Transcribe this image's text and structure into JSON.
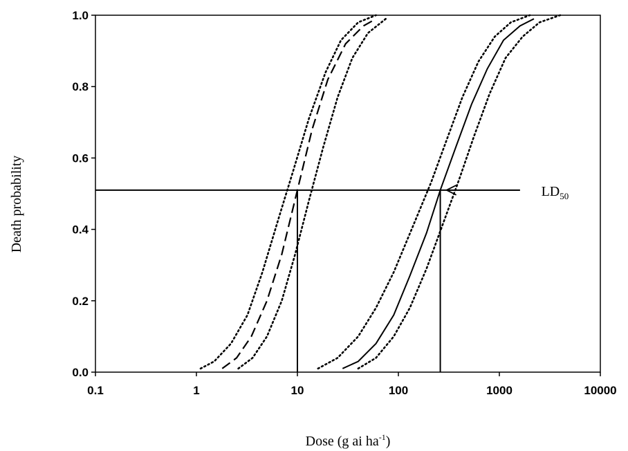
{
  "chart_data": {
    "type": "line",
    "xlabel": {
      "main": "Dose (g ai ha",
      "sup": "-1",
      "close": ")"
    },
    "ylabel": "Death probability",
    "x_scale": "log",
    "xlim": [
      0.1,
      10000
    ],
    "ylim": [
      0,
      1
    ],
    "x_ticks": [
      0.1,
      1,
      10,
      100,
      1000,
      10000
    ],
    "x_tick_labels": [
      "0.1",
      "1",
      "10",
      "100",
      "1000",
      "10000"
    ],
    "y_ticks": [
      0,
      0.2,
      0.4,
      0.6,
      0.8,
      1.0
    ],
    "y_tick_labels": [
      "0.0",
      "0.2",
      "0.4",
      "0.6",
      "0.8",
      "1.0"
    ],
    "grid": false,
    "series": [
      {
        "style": "dashed",
        "x": [
          1.8,
          2.5,
          3.5,
          5,
          7,
          10,
          14,
          20,
          30,
          45,
          60
        ],
        "y": [
          0.01,
          0.04,
          0.1,
          0.2,
          0.33,
          0.51,
          0.68,
          0.82,
          0.92,
          0.97,
          0.99
        ]
      },
      {
        "style": "dotted",
        "x": [
          1.1,
          1.5,
          2.2,
          3.2,
          4.5,
          6.5,
          9,
          13,
          19,
          27,
          40,
          60
        ],
        "y": [
          0.01,
          0.03,
          0.08,
          0.16,
          0.28,
          0.43,
          0.56,
          0.71,
          0.84,
          0.93,
          0.98,
          1.0
        ]
      },
      {
        "style": "dotted",
        "x": [
          2.6,
          3.6,
          5,
          7,
          9.5,
          13,
          18,
          25,
          35,
          50,
          75
        ],
        "y": [
          0.01,
          0.04,
          0.1,
          0.2,
          0.33,
          0.48,
          0.63,
          0.77,
          0.88,
          0.95,
          0.99
        ]
      },
      {
        "style": "solid",
        "x": [
          28,
          40,
          60,
          90,
          130,
          190,
          260,
          370,
          530,
          760,
          1100,
          1600,
          2200
        ],
        "y": [
          0.01,
          0.03,
          0.08,
          0.16,
          0.27,
          0.39,
          0.51,
          0.63,
          0.75,
          0.85,
          0.93,
          0.97,
          0.99
        ]
      },
      {
        "style": "dotted",
        "x": [
          16,
          25,
          40,
          60,
          90,
          140,
          210,
          300,
          430,
          620,
          900,
          1300,
          2000
        ],
        "y": [
          0.01,
          0.04,
          0.1,
          0.18,
          0.28,
          0.41,
          0.53,
          0.65,
          0.77,
          0.87,
          0.94,
          0.98,
          1.0
        ]
      },
      {
        "style": "dotted",
        "x": [
          40,
          60,
          90,
          130,
          190,
          280,
          400,
          560,
          800,
          1150,
          1700,
          2500,
          4000
        ],
        "y": [
          0.01,
          0.04,
          0.1,
          0.18,
          0.29,
          0.42,
          0.54,
          0.66,
          0.78,
          0.88,
          0.94,
          0.98,
          1.0
        ]
      }
    ],
    "reference_lines": {
      "y": 0.51,
      "x_from": 0.1,
      "x_to": 1600,
      "vertical_x": [
        10,
        260
      ]
    },
    "annotation": {
      "text": "LD",
      "subscript": "50",
      "arrow_from_x": 1600,
      "arrow_to_x": 300,
      "y": 0.51,
      "text_at_x": 2600
    }
  }
}
